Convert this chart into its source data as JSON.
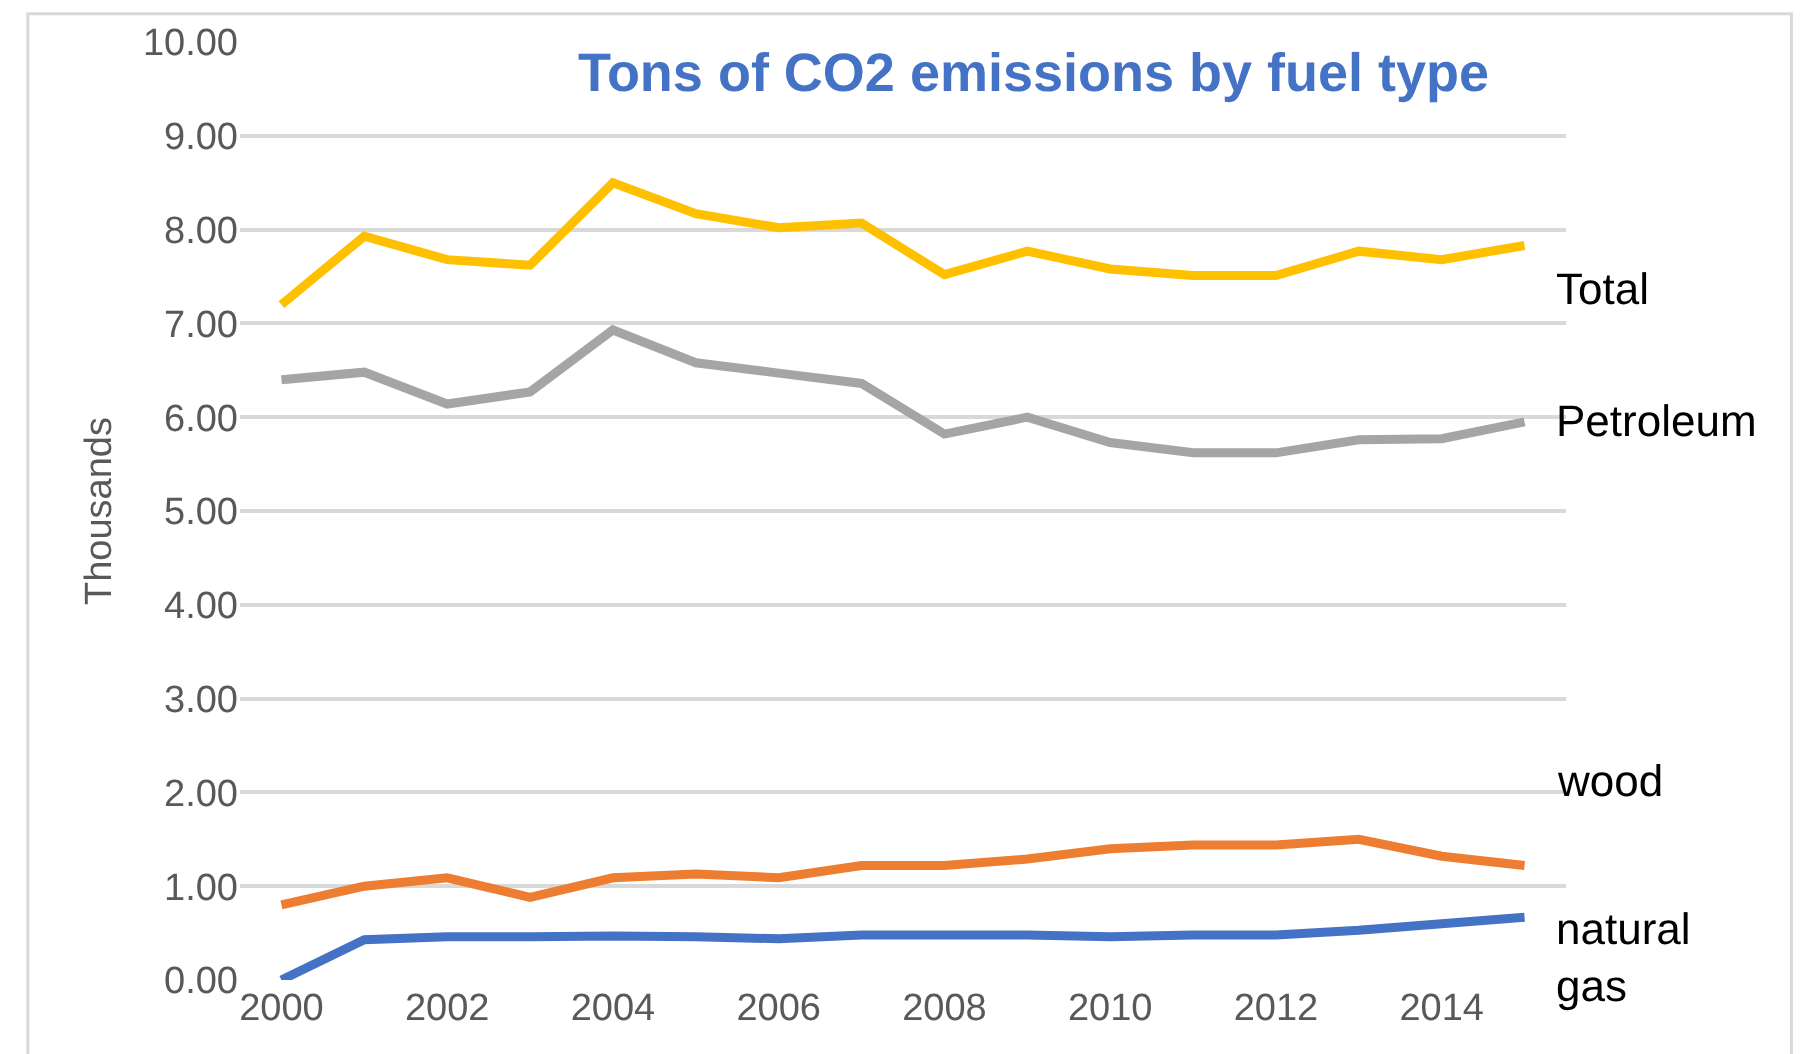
{
  "chart_data": {
    "type": "line",
    "title": "Tons of CO2 emissions by fuel type",
    "ylabel": "Thousands",
    "x": [
      2000,
      2001,
      2002,
      2003,
      2004,
      2005,
      2006,
      2007,
      2008,
      2009,
      2010,
      2011,
      2012,
      2013,
      2014,
      2015
    ],
    "xlim": [
      1999.5,
      2015.5
    ],
    "xticks": [
      2000,
      2002,
      2004,
      2006,
      2008,
      2010,
      2012,
      2014
    ],
    "ylim": [
      0,
      10
    ],
    "yticks": [
      {
        "value": 0,
        "label": "0.00"
      },
      {
        "value": 1,
        "label": "1.00"
      },
      {
        "value": 2,
        "label": "2.00"
      },
      {
        "value": 3,
        "label": "3.00"
      },
      {
        "value": 4,
        "label": "4.00"
      },
      {
        "value": 5,
        "label": "5.00"
      },
      {
        "value": 6,
        "label": "6.00"
      },
      {
        "value": 7,
        "label": "7.00"
      },
      {
        "value": 8,
        "label": "8.00"
      },
      {
        "value": 9,
        "label": "9.00"
      },
      {
        "value": 10,
        "label": "10.00"
      }
    ],
    "grid": "y",
    "legend": false,
    "marker": "none",
    "line_style": "solid",
    "series": [
      {
        "name": "Total",
        "color": "#ffc000",
        "values": [
          7.2,
          7.93,
          7.68,
          7.62,
          8.5,
          8.17,
          8.02,
          8.07,
          7.52,
          7.77,
          7.58,
          7.51,
          7.51,
          7.77,
          7.68,
          7.83
        ]
      },
      {
        "name": "Petroleum",
        "color": "#a5a5a5",
        "values": [
          6.4,
          6.48,
          6.14,
          6.27,
          6.93,
          6.58,
          6.47,
          6.36,
          5.82,
          6.0,
          5.73,
          5.62,
          5.62,
          5.76,
          5.77,
          5.95
        ]
      },
      {
        "name": "wood",
        "color": "#ed7d31",
        "values": [
          0.8,
          1.0,
          1.09,
          0.88,
          1.09,
          1.13,
          1.09,
          1.22,
          1.22,
          1.29,
          1.4,
          1.44,
          1.44,
          1.5,
          1.32,
          1.22
        ]
      },
      {
        "name": "natural gas",
        "color": "#4472c4",
        "values": [
          0.0,
          0.43,
          0.46,
          0.46,
          0.47,
          0.46,
          0.44,
          0.48,
          0.48,
          0.48,
          0.46,
          0.48,
          0.48,
          0.53,
          0.6,
          0.67
        ]
      }
    ]
  }
}
